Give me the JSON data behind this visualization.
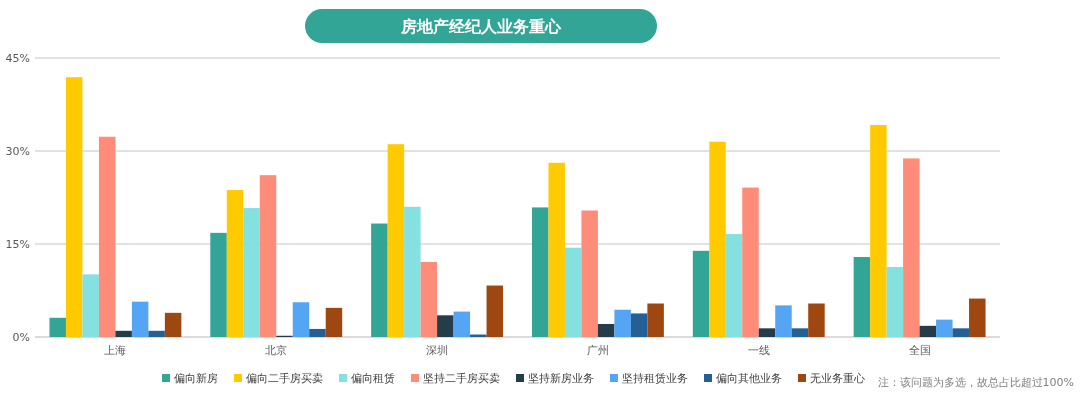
{
  "chart_data": {
    "type": "bar",
    "title": "房地产经纪人业务重心",
    "categories": [
      "上海",
      "北京",
      "深圳",
      "广州",
      "一线",
      "全国"
    ],
    "series": [
      {
        "name": "偏向新房",
        "color": "#32a597",
        "values": [
          3.1,
          16.8,
          18.3,
          20.9,
          13.9,
          12.9
        ]
      },
      {
        "name": "偏向二手房买卖",
        "color": "#ffcb00",
        "values": [
          41.9,
          23.7,
          31.1,
          28.1,
          31.5,
          34.2
        ]
      },
      {
        "name": "偏向租赁",
        "color": "#85e1e0",
        "values": [
          10.1,
          20.8,
          21.0,
          14.4,
          16.6,
          11.3
        ]
      },
      {
        "name": "坚持二手房买卖",
        "color": "#ff8b79",
        "values": [
          32.3,
          26.1,
          12.1,
          20.4,
          24.1,
          28.8
        ]
      },
      {
        "name": "坚持新房业务",
        "color": "#253d4b",
        "values": [
          1.0,
          0.2,
          3.5,
          2.1,
          1.4,
          1.8
        ]
      },
      {
        "name": "坚持租赁业务",
        "color": "#55a5f5",
        "values": [
          5.7,
          5.6,
          4.1,
          4.4,
          5.1,
          2.8
        ]
      },
      {
        "name": "偏向其他业务",
        "color": "#245f95",
        "values": [
          1.0,
          1.3,
          0.4,
          3.8,
          1.4,
          1.4
        ]
      },
      {
        "name": "无业务重心",
        "color": "#9e4710",
        "values": [
          3.9,
          4.7,
          8.3,
          5.4,
          5.4,
          6.2
        ]
      }
    ],
    "ylim": [
      0,
      45
    ],
    "yticks": [
      {
        "value": 0,
        "label": "0%"
      },
      {
        "value": 15,
        "label": "15%"
      },
      {
        "value": 30,
        "label": "30%"
      },
      {
        "value": 45,
        "label": "45%"
      }
    ],
    "grid": "y",
    "legend": "bottom",
    "annotations": [
      "注：该问题为多选，故总占比超过100%"
    ]
  }
}
